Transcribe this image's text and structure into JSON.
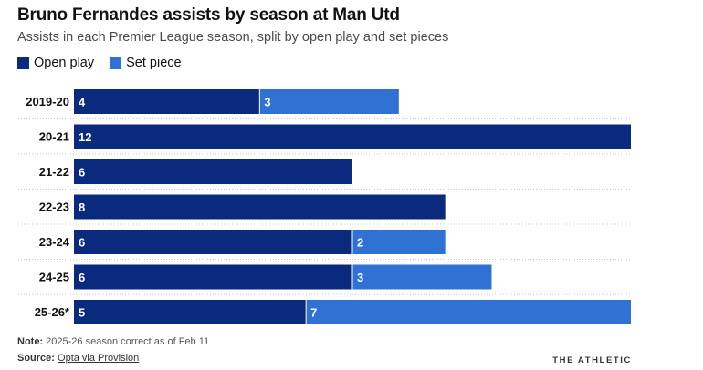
{
  "title": "Bruno Fernandes assists by season at Man Utd",
  "subtitle": "Assists in each Premier League season, split by open play and set pieces",
  "legend": {
    "open_play": "Open play",
    "set_piece": "Set piece"
  },
  "colors": {
    "open_play": "#0a2a7d",
    "set_piece": "#2f72d3",
    "gridline": "#c8c8c8"
  },
  "note": {
    "label": "Note:",
    "text": "2025-26 season correct as of Feb 11"
  },
  "source": {
    "label": "Source:",
    "text": "Opta via Provision"
  },
  "brand": "THE ATHLETIC",
  "chart_data": {
    "type": "bar",
    "orientation": "horizontal",
    "stacked": true,
    "categories": [
      "2019-20",
      "20-21",
      "21-22",
      "22-23",
      "23-24",
      "24-25",
      "25-26*"
    ],
    "series": [
      {
        "name": "Open play",
        "values": [
          4,
          12,
          6,
          8,
          6,
          6,
          5
        ]
      },
      {
        "name": "Set piece",
        "values": [
          3,
          0,
          0,
          0,
          2,
          3,
          7
        ]
      }
    ],
    "xlim": [
      0,
      12
    ],
    "grid": "dotted row separators",
    "legend_position": "top-left"
  }
}
